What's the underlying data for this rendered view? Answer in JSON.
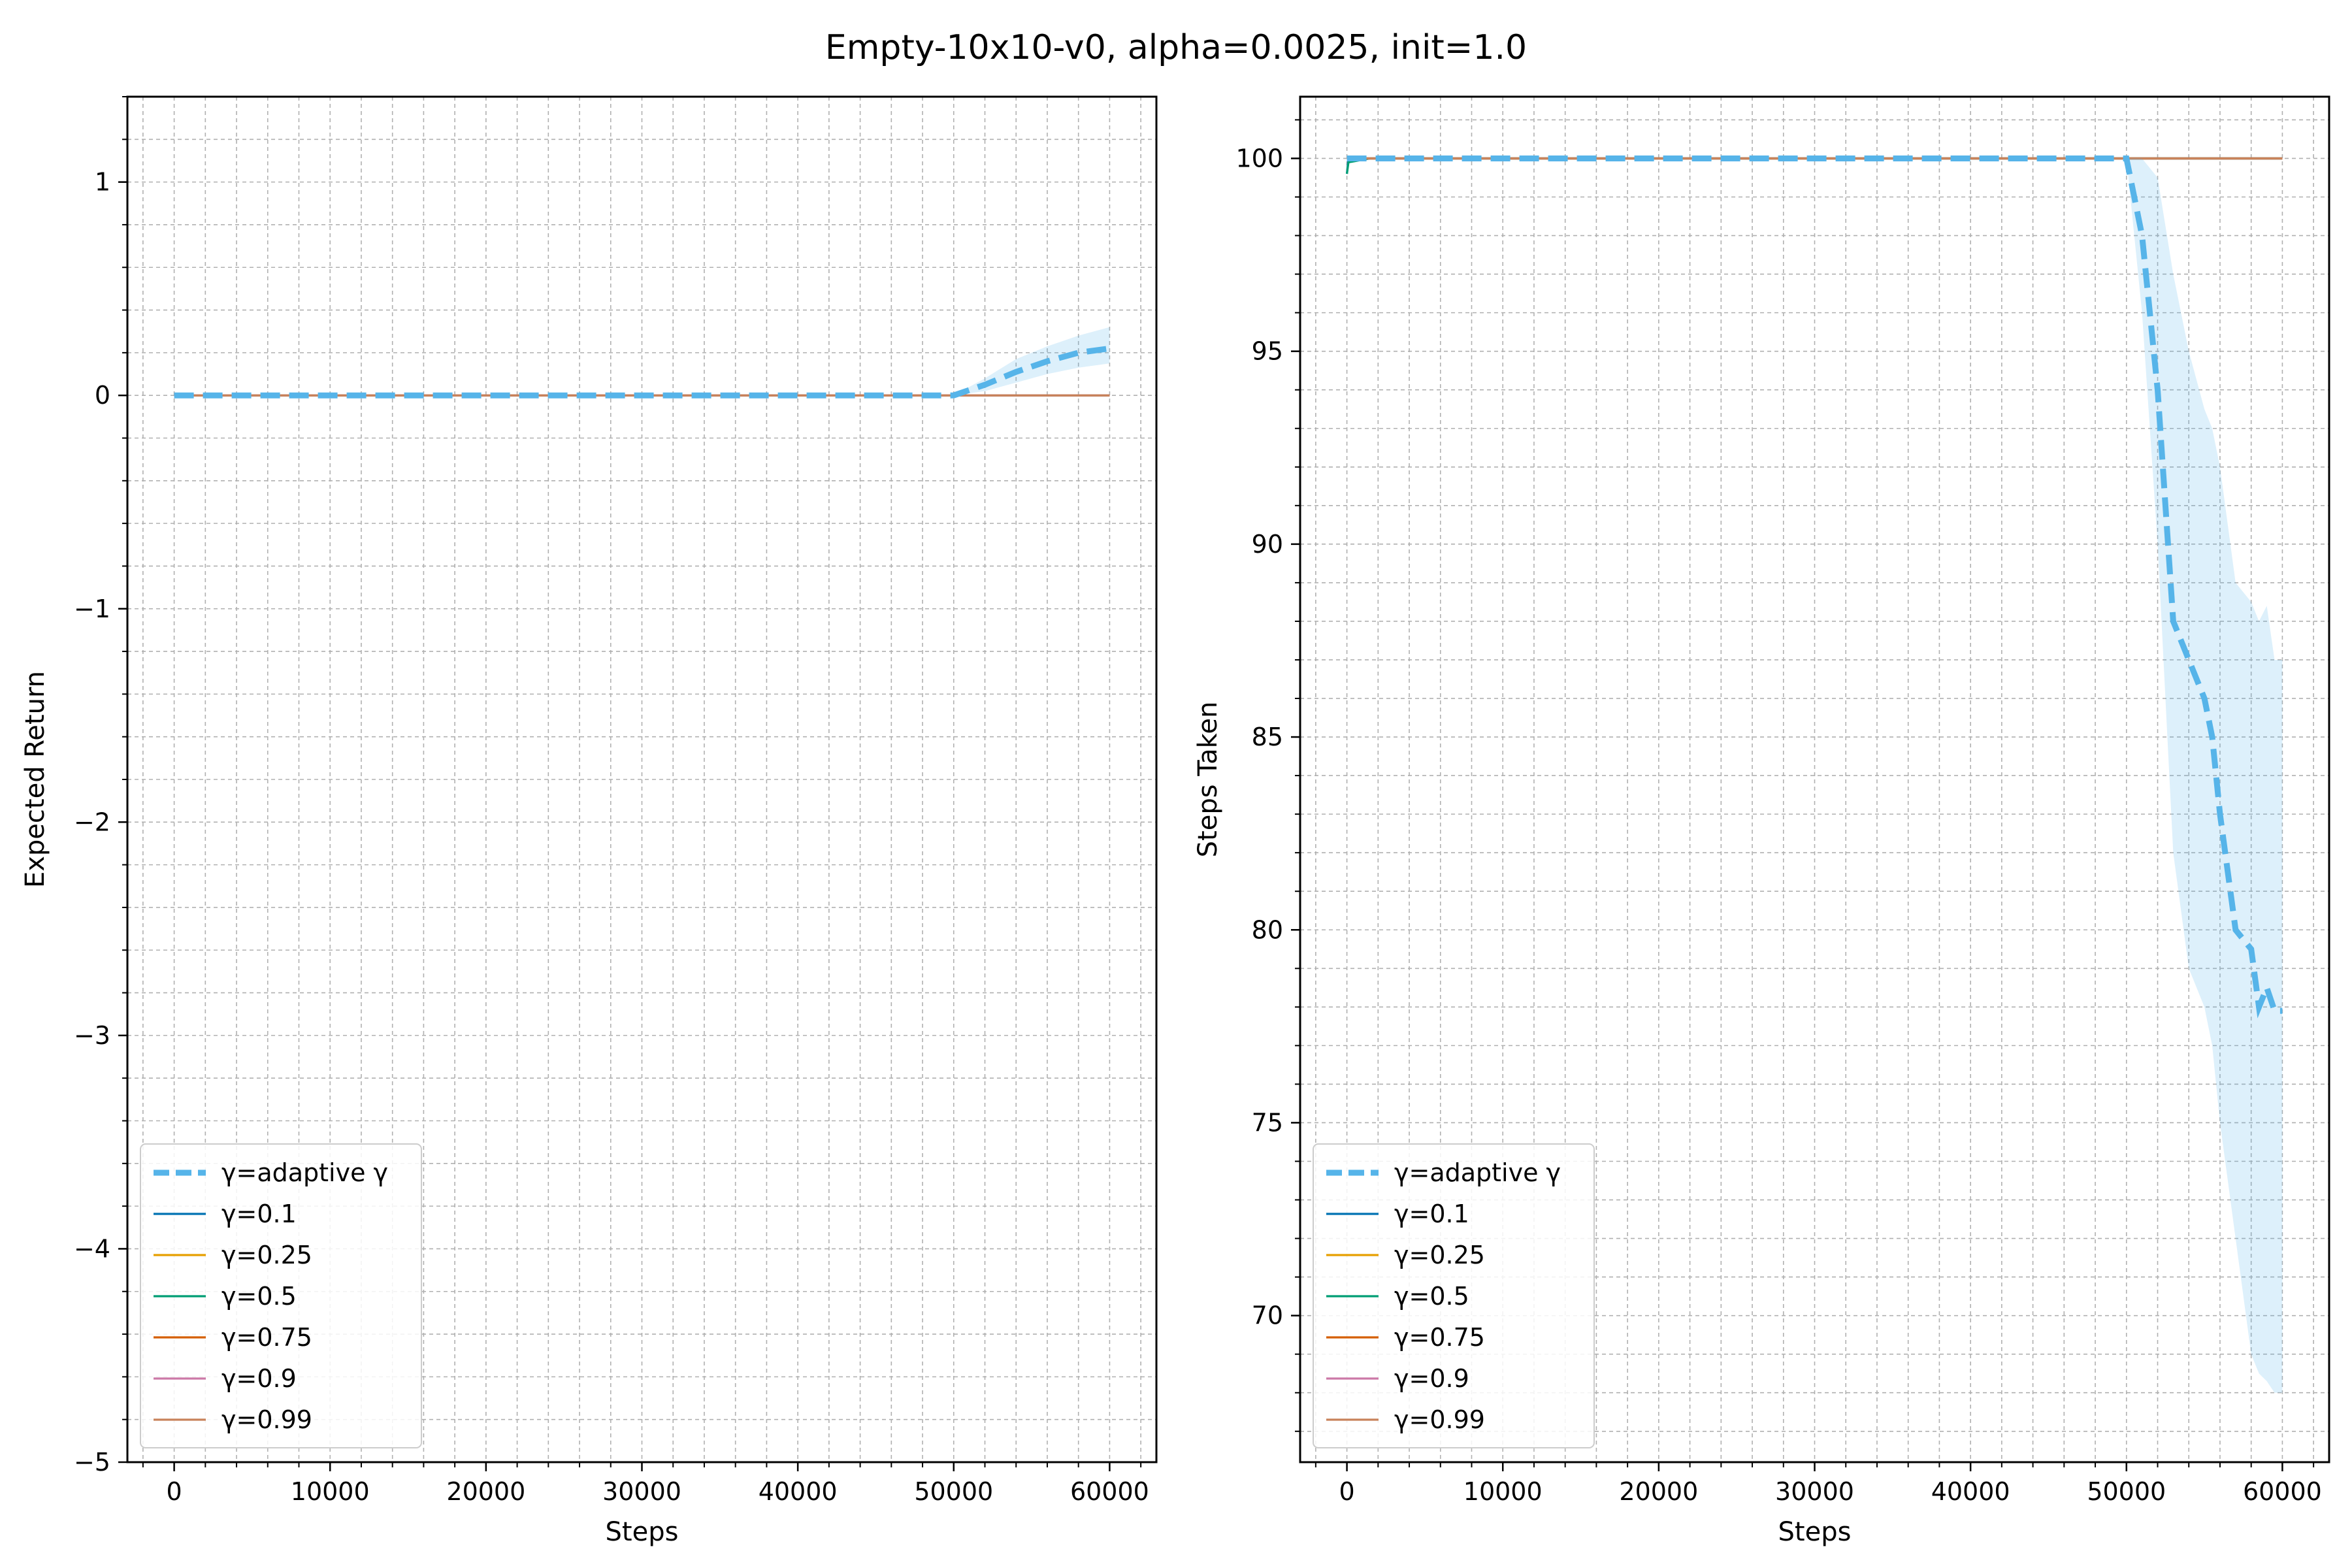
{
  "figure": {
    "title": "Empty-10x10-v0, alpha=0.0025, init=1.0"
  },
  "colors": {
    "adaptive": "#56b4e9",
    "band": "#56b4e9",
    "g01": "#0072b2",
    "g025": "#e69f00",
    "g05": "#009e73",
    "g075": "#d55e00",
    "g09": "#cc79a7",
    "g099": "#c8825a"
  },
  "chart_data": [
    {
      "type": "line",
      "xlabel": "Steps",
      "ylabel": "Expected Return",
      "xlim": [
        -3000,
        63000
      ],
      "ylim": [
        -5,
        1.4
      ],
      "xticks": [
        0,
        10000,
        20000,
        30000,
        40000,
        50000,
        60000
      ],
      "yticks": [
        -5,
        -4,
        -3,
        -2,
        -1,
        0,
        1
      ],
      "ytick_labels": [
        "−5",
        "−4",
        "−3",
        "−2",
        "−1",
        "0",
        "1"
      ],
      "grid": true,
      "legend_position": "lower-left",
      "series": [
        {
          "name": "γ=adaptive γ",
          "style": "dashed",
          "color_key": "adaptive",
          "x": [
            0,
            10000,
            20000,
            30000,
            40000,
            48000,
            50000,
            52000,
            54000,
            56000,
            58000,
            60000
          ],
          "y": [
            0,
            0,
            0,
            0,
            0,
            0,
            0.0,
            0.05,
            0.11,
            0.16,
            0.2,
            0.22
          ],
          "band_low": [
            0,
            0,
            0,
            0,
            0,
            0,
            0.0,
            0.02,
            0.06,
            0.1,
            0.13,
            0.15
          ],
          "band_high": [
            0,
            0,
            0,
            0,
            0,
            0,
            0.0,
            0.08,
            0.17,
            0.23,
            0.28,
            0.32
          ]
        },
        {
          "name": "γ=0.1",
          "color_key": "g01",
          "x": [
            0,
            60000
          ],
          "y": [
            0,
            0
          ]
        },
        {
          "name": "γ=0.25",
          "color_key": "g025",
          "x": [
            0,
            60000
          ],
          "y": [
            0,
            0
          ]
        },
        {
          "name": "γ=0.5",
          "color_key": "g05",
          "x": [
            0,
            60000
          ],
          "y": [
            0,
            0
          ]
        },
        {
          "name": "γ=0.75",
          "color_key": "g075",
          "x": [
            0,
            60000
          ],
          "y": [
            0,
            0
          ]
        },
        {
          "name": "γ=0.9",
          "color_key": "g09",
          "x": [
            0,
            60000
          ],
          "y": [
            0,
            0
          ]
        },
        {
          "name": "γ=0.99",
          "color_key": "g099",
          "x": [
            0,
            60000
          ],
          "y": [
            0,
            0
          ]
        }
      ]
    },
    {
      "type": "line",
      "xlabel": "Steps",
      "ylabel": "Steps Taken",
      "xlim": [
        -3000,
        63000
      ],
      "ylim": [
        66.2,
        101.6
      ],
      "xticks": [
        0,
        10000,
        20000,
        30000,
        40000,
        50000,
        60000
      ],
      "yticks": [
        70,
        75,
        80,
        85,
        90,
        95,
        100
      ],
      "ytick_labels": [
        "70",
        "75",
        "80",
        "85",
        "90",
        "95",
        "100"
      ],
      "grid": true,
      "legend_position": "lower-left",
      "series": [
        {
          "name": "γ=adaptive γ",
          "style": "dashed",
          "color_key": "adaptive",
          "x": [
            0,
            10000,
            20000,
            30000,
            40000,
            49000,
            50000,
            51000,
            52000,
            53000,
            54000,
            55000,
            55500,
            56000,
            57000,
            58000,
            58500,
            59000,
            59500,
            60000
          ],
          "y": [
            100,
            100,
            100,
            100,
            100,
            100,
            100,
            98,
            94,
            88,
            87,
            86,
            85,
            83,
            80,
            79.5,
            78,
            78.5,
            77.9,
            77.9
          ],
          "band_low": [
            100,
            100,
            100,
            100,
            100,
            100,
            100,
            96,
            90,
            82,
            79,
            78,
            77,
            75,
            72,
            69,
            68.5,
            68.3,
            68.0,
            68.0
          ],
          "band_high": [
            100,
            100,
            100,
            100,
            100,
            100,
            100,
            100,
            99.5,
            97,
            95,
            93.5,
            93,
            92,
            89,
            88.5,
            88,
            88.4,
            87,
            87
          ]
        },
        {
          "name": "γ=0.1",
          "color_key": "g01",
          "x": [
            0,
            100,
            1500,
            60000
          ],
          "y": [
            99.6,
            100,
            100,
            100
          ]
        },
        {
          "name": "γ=0.25",
          "color_key": "g025",
          "x": [
            0,
            60000
          ],
          "y": [
            100,
            100
          ]
        },
        {
          "name": "γ=0.5",
          "color_key": "g05",
          "x": [
            0,
            100,
            1500,
            60000
          ],
          "y": [
            99.6,
            99.9,
            100,
            100
          ]
        },
        {
          "name": "γ=0.75",
          "color_key": "g075",
          "x": [
            0,
            60000
          ],
          "y": [
            100,
            100
          ]
        },
        {
          "name": "γ=0.9",
          "color_key": "g09",
          "x": [
            0,
            60000
          ],
          "y": [
            100,
            100
          ]
        },
        {
          "name": "γ=0.99",
          "color_key": "g099",
          "x": [
            0,
            60000
          ],
          "y": [
            100,
            100
          ]
        }
      ]
    }
  ]
}
